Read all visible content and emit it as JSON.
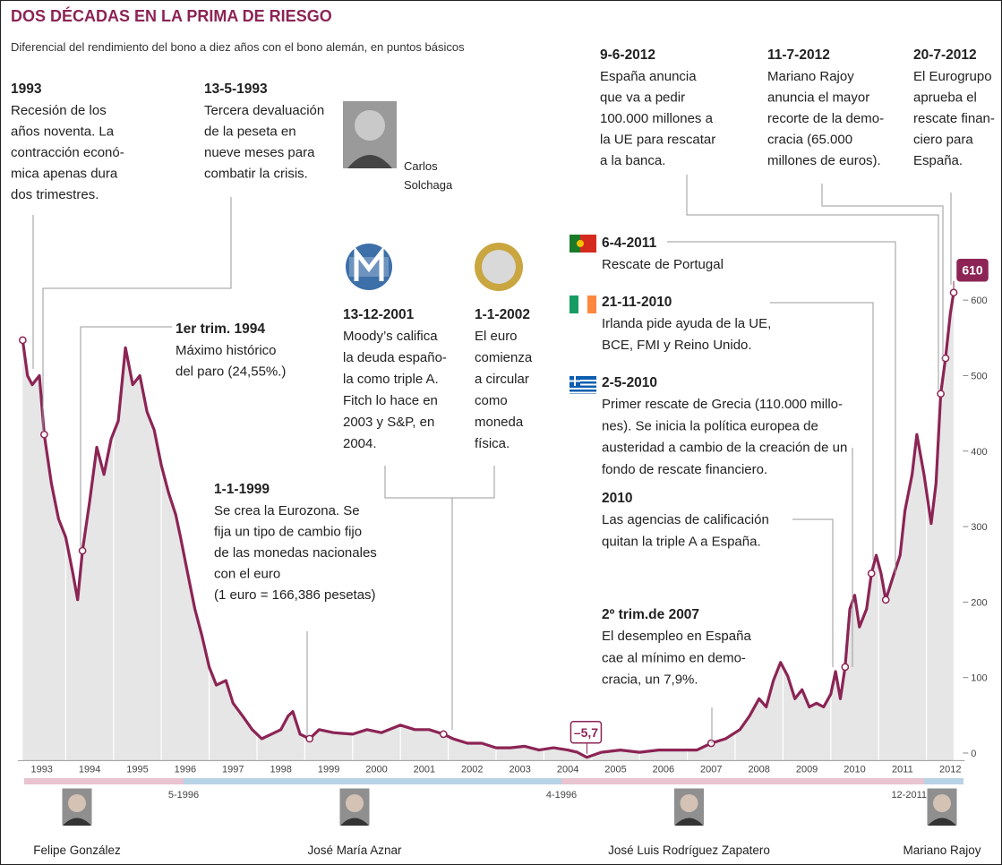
{
  "chart_data": {
    "type": "line",
    "title": "DOS DÉCADAS EN LA PRIMA DE RIESGO",
    "subtitle": "Diferencial del rendimiento del bono a diez años con el bono alemán, en puntos básicos",
    "x": [
      1993.1,
      1993.2,
      1993.3,
      1993.45,
      1993.55,
      1993.7,
      1993.85,
      1994.0,
      1994.15,
      1994.25,
      1994.35,
      1994.5,
      1994.65,
      1994.8,
      1994.95,
      1995.1,
      1995.25,
      1995.4,
      1995.55,
      1995.7,
      1995.85,
      1996.0,
      1996.15,
      1996.3,
      1996.4,
      1996.55,
      1996.7,
      1996.85,
      1997.0,
      1997.15,
      1997.35,
      1997.5,
      1997.7,
      1997.9,
      1998.1,
      1998.3,
      1998.5,
      1998.65,
      1998.75,
      1998.9,
      1999.1,
      1999.3,
      1999.6,
      2000.0,
      2000.3,
      2000.6,
      2001.0,
      2001.3,
      2001.6,
      2001.9,
      2002.1,
      2002.4,
      2002.7,
      2003.0,
      2003.3,
      2003.6,
      2003.9,
      2004.2,
      2004.5,
      2004.7,
      2004.9,
      2005.2,
      2005.6,
      2006.0,
      2006.4,
      2006.8,
      2007.2,
      2007.5,
      2007.8,
      2008.1,
      2008.3,
      2008.5,
      2008.65,
      2008.8,
      2008.95,
      2009.1,
      2009.25,
      2009.4,
      2009.55,
      2009.7,
      2009.85,
      2010.0,
      2010.1,
      2010.2,
      2010.3,
      2010.4,
      2010.5,
      2010.6,
      2010.75,
      2010.85,
      2010.95,
      2011.05,
      2011.15,
      2011.3,
      2011.45,
      2011.55,
      2011.7,
      2011.8,
      2011.95,
      2012.1,
      2012.2,
      2012.3,
      2012.4,
      2012.5,
      2012.57
    ],
    "series": [
      {
        "color": "#8c2455",
        "values": [
          547,
          500,
          488,
          500,
          422,
          357,
          310,
          286,
          238,
          203,
          268,
          333,
          405,
          369,
          416,
          440,
          537,
          488,
          500,
          452,
          428,
          381,
          345,
          316,
          286,
          238,
          191,
          155,
          114,
          90,
          96,
          66,
          49,
          31,
          19,
          25,
          31,
          49,
          55,
          25,
          19,
          31,
          27,
          25,
          31,
          27,
          37,
          31,
          31,
          25,
          19,
          13,
          13,
          7,
          7,
          9,
          4,
          7,
          4,
          1,
          -5.7,
          1,
          4,
          1,
          4,
          4,
          4,
          13,
          19,
          31,
          49,
          72,
          61,
          96,
          120,
          102,
          72,
          84,
          61,
          66,
          61,
          78,
          108,
          72,
          114,
          191,
          209,
          167,
          191,
          238,
          262,
          238,
          203,
          233,
          262,
          321,
          369,
          422,
          369,
          304,
          357,
          476,
          523,
          582,
          610
        ],
        "value_labels": [
          null,
          null,
          null,
          null,
          null,
          null,
          null,
          null,
          null,
          null,
          null,
          null,
          null,
          null,
          null,
          null,
          null,
          null,
          null,
          null,
          null,
          null,
          null,
          null,
          null,
          null,
          null,
          null,
          null,
          null,
          null,
          null,
          null,
          null,
          null,
          null,
          null,
          null,
          null,
          null,
          null,
          null,
          null,
          null,
          null,
          null,
          null,
          null,
          null,
          null,
          null,
          null,
          null,
          null,
          null,
          null,
          null,
          null,
          null,
          null,
          "–5,7",
          null,
          null,
          null,
          null,
          null,
          null,
          null,
          null,
          null,
          null,
          null,
          null,
          null,
          null,
          null,
          null,
          null,
          null,
          null,
          null,
          null,
          null,
          null,
          null,
          null,
          null,
          null,
          null,
          null,
          null,
          null,
          null,
          null,
          null,
          null,
          null,
          null,
          null,
          null,
          null,
          null,
          null,
          null,
          "610"
        ]
      }
    ],
    "xlim": [
      1993,
      2012.8
    ],
    "xticks": [
      1993,
      1994,
      1995,
      1996,
      1997,
      1998,
      1999,
      2000,
      2001,
      2002,
      2003,
      2004,
      2005,
      2006,
      2007,
      2008,
      2009,
      2010,
      2011,
      2012
    ],
    "ylim": [
      -10,
      620
    ],
    "yticks": [
      0,
      100,
      200,
      300,
      400,
      500,
      600
    ],
    "grid": true,
    "annotations": [
      {
        "date": "1993",
        "lines": [
          "Recesión de los",
          "años noventa. La",
          "contracción econó-",
          "mica apenas dura",
          "dos trimestres."
        ]
      },
      {
        "date": "13-5-1993",
        "lines": [
          "Tercera devaluación",
          "de la peseta en",
          "nueve meses para",
          "combatir la crisis."
        ]
      },
      {
        "date": "1er trim. 1994",
        "lines": [
          "Máximo histórico",
          "del paro (24,55%.)"
        ]
      },
      {
        "date": "1-1-1999",
        "lines": [
          "Se crea la Eurozona. Se",
          "fija un tipo de cambio fijo",
          "de las monedas nacionales",
          "con el euro",
          "(1 euro = 166,386 pesetas)"
        ]
      },
      {
        "date": "13-12-2001",
        "lines": [
          "Moody’s califica",
          "la deuda españo-",
          "la como triple A.",
          "Fitch lo hace en",
          "2003 y S&P, en",
          "2004."
        ]
      },
      {
        "date": "1-1-2002",
        "lines": [
          "El euro",
          "comienza",
          "a circular",
          "como",
          "moneda",
          "física."
        ]
      },
      {
        "date": "9-6-2012",
        "lines": [
          "España anuncia",
          "que va a pedir",
          "100.000 millones a",
          "la UE para rescatar",
          "a la banca."
        ]
      },
      {
        "date": "11-7-2012",
        "lines": [
          "Mariano Rajoy",
          "anuncia el mayor",
          "recorte de la demo-",
          "cracia (65.000",
          "millones de euros)."
        ]
      },
      {
        "date": "20-7-2012",
        "lines": [
          "El Eurogrupo",
          "aprueba el",
          "rescate finan-",
          "ciero para",
          "España."
        ]
      },
      {
        "date": "6-4-2011",
        "lines": [
          "Rescate de Portugal"
        ]
      },
      {
        "date": "21-11-2010",
        "lines": [
          "Irlanda pide ayuda de la UE,",
          "BCE, FMI y Reino Unido."
        ]
      },
      {
        "date": "2-5-2010",
        "lines": [
          "Primer rescate de Grecia (110.000 millo-",
          "nes). Se inicia la política europea de",
          "austeridad a cambio de la creación de un",
          "fondo de rescate financiero."
        ]
      },
      {
        "date": "2010",
        "lines": [
          "Las agencias de calificación",
          "quitan la triple A a España."
        ]
      },
      {
        "date": "2º trim.de 2007",
        "lines": [
          "El desempleo en España",
          "cae al mínimo en demo-",
          "cracia, un 7,9%."
        ]
      }
    ],
    "photo_caption": [
      "Carlos",
      "Solchaga"
    ],
    "governments": [
      "Felipe González",
      "José María Aznar",
      "José Luis Rodríguez Zapatero",
      "Mariano Rajoy"
    ],
    "transitions": [
      "5-1996",
      "4-1996",
      "12-2011"
    ]
  }
}
